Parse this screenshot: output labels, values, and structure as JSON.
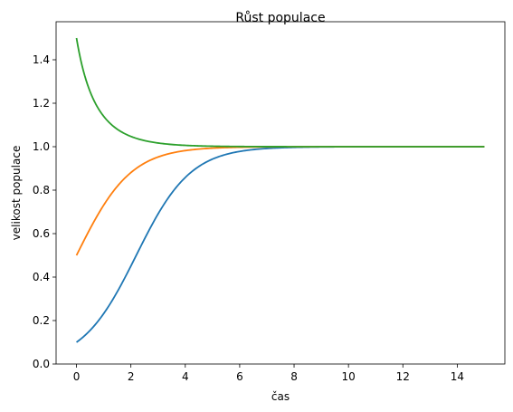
{
  "chart_data": {
    "type": "line",
    "title": "Růst populace",
    "xlabel": "čas",
    "ylabel": "velikost populace",
    "xlim": [
      -0.75,
      15.75
    ],
    "ylim": [
      0.0,
      1.575
    ],
    "xticks": [
      0,
      2,
      4,
      6,
      8,
      10,
      12,
      14
    ],
    "yticks": [
      0.0,
      0.2,
      0.4,
      0.6,
      0.8,
      1.0,
      1.2,
      1.4
    ],
    "grid": false,
    "legend": "none",
    "series": [
      {
        "color": "#1f77b4",
        "x0": 0,
        "x1": 15,
        "y0": 0.1,
        "rate": 1.0
      },
      {
        "color": "#ff7f0e",
        "x0": 0,
        "x1": 15,
        "y0": 0.5,
        "rate": 1.0
      },
      {
        "color": "#2ca02c",
        "x0": 0,
        "x1": 15,
        "y0": 1.5,
        "rate": 1.0
      }
    ]
  }
}
